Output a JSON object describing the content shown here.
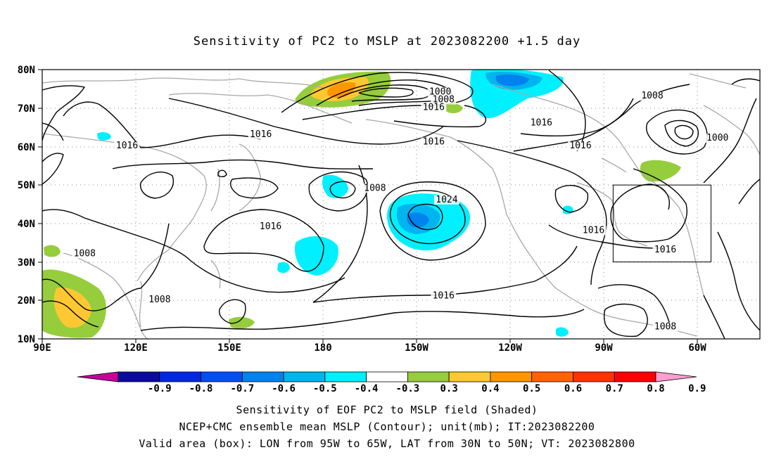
{
  "title": "Sensitivity of PC2 to MSLP at 2023082200 +1.5 day",
  "map": {
    "lat_ticks": [
      "80N",
      "70N",
      "60N",
      "50N",
      "40N",
      "30N",
      "20N",
      "10N"
    ],
    "lon_ticks": [
      "90E",
      "120E",
      "150E",
      "180",
      "150W",
      "120W",
      "90W",
      "60W"
    ],
    "lon_range": [
      90,
      310
    ],
    "lat_range": [
      10,
      80
    ],
    "valid_box": {
      "lon": [
        265,
        295
      ],
      "lat": [
        30,
        50
      ]
    },
    "contour_labels": [
      {
        "text": "1000",
        "lon": 212,
        "lat": 73.5
      },
      {
        "text": "1008",
        "lon": 213,
        "lat": 71.5
      },
      {
        "text": "1016",
        "lon": 210,
        "lat": 69.5
      },
      {
        "text": "1016",
        "lon": 157,
        "lat": 62.5
      },
      {
        "text": "1016",
        "lon": 116,
        "lat": 59.5
      },
      {
        "text": "1016",
        "lon": 210,
        "lat": 60.5
      },
      {
        "text": "1016",
        "lon": 243,
        "lat": 65.5
      },
      {
        "text": "1016",
        "lon": 255,
        "lat": 59.5
      },
      {
        "text": "1008",
        "lon": 277,
        "lat": 72.5
      },
      {
        "text": "1000",
        "lon": 297,
        "lat": 61.5
      },
      {
        "text": "1008",
        "lon": 192,
        "lat": 48.5
      },
      {
        "text": "1024",
        "lon": 214,
        "lat": 45.5
      },
      {
        "text": "1016",
        "lon": 160,
        "lat": 38.5
      },
      {
        "text": "1016",
        "lon": 259,
        "lat": 37.5
      },
      {
        "text": "1016",
        "lon": 281,
        "lat": 32.5
      },
      {
        "text": "1008",
        "lon": 103,
        "lat": 31.5
      },
      {
        "text": "1008",
        "lon": 126,
        "lat": 19.5
      },
      {
        "text": "1016",
        "lon": 213,
        "lat": 20.5
      },
      {
        "text": "1008",
        "lon": 281,
        "lat": 12.5
      }
    ]
  },
  "colorbar": {
    "labels": [
      "-0.9",
      "-0.8",
      "-0.7",
      "-0.6",
      "-0.5",
      "-0.4",
      "-0.3",
      "0.3",
      "0.4",
      "0.5",
      "0.6",
      "0.7",
      "0.8",
      "0.9"
    ],
    "colors": [
      "#0a0aa0",
      "#0028e0",
      "#0050f0",
      "#0082f0",
      "#00b4f0",
      "#00f0ff",
      "#ffffff",
      "#96cd3c",
      "#ffc832",
      "#ff9600",
      "#ff6400",
      "#ff3200",
      "#ff0000"
    ],
    "low_end_color": "#c8009c",
    "high_end_color": "#ff9ed2"
  },
  "captions": [
    "Sensitivity of EOF PC2 to MSLP field (Shaded)",
    "NCEP+CMC ensemble mean MSLP (Contour); unit(mb); IT:2023082200",
    "Valid area (box): LON from 95W to 65W, LAT from 30N to 50N; VT: 2023082800"
  ]
}
